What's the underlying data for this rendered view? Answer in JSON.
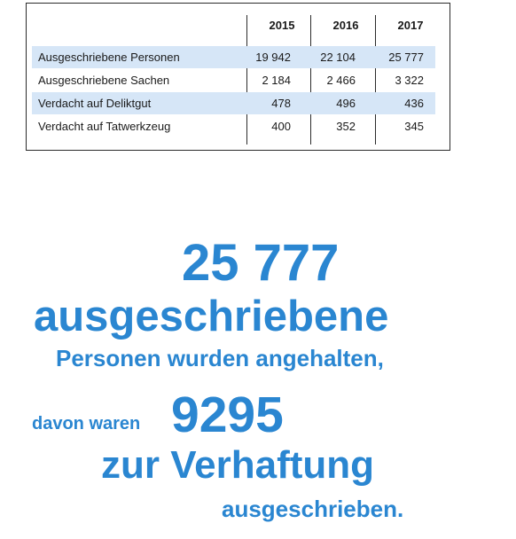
{
  "table": {
    "years": [
      "2015",
      "2016",
      "2017"
    ],
    "rows": [
      {
        "label": "Ausgeschriebene Personen",
        "values": [
          "19 942",
          "22 104",
          "25 777"
        ]
      },
      {
        "label": "Ausgeschriebene Sachen",
        "values": [
          "2 184",
          "2 466",
          "3 322"
        ]
      },
      {
        "label": "Verdacht auf Deliktgut",
        "values": [
          "478",
          "496",
          "436"
        ]
      },
      {
        "label": "Verdacht auf Tatwerkzeug",
        "values": [
          "400",
          "352",
          "345"
        ]
      }
    ]
  },
  "headline": {
    "number1": "25 777",
    "line2": "ausgeschriebene",
    "line3": "Personen wurden angehalten,",
    "prefix": "davon waren",
    "number2": "9295",
    "line5": "zur Verhaftung",
    "line6": "ausgeschrieben."
  }
}
